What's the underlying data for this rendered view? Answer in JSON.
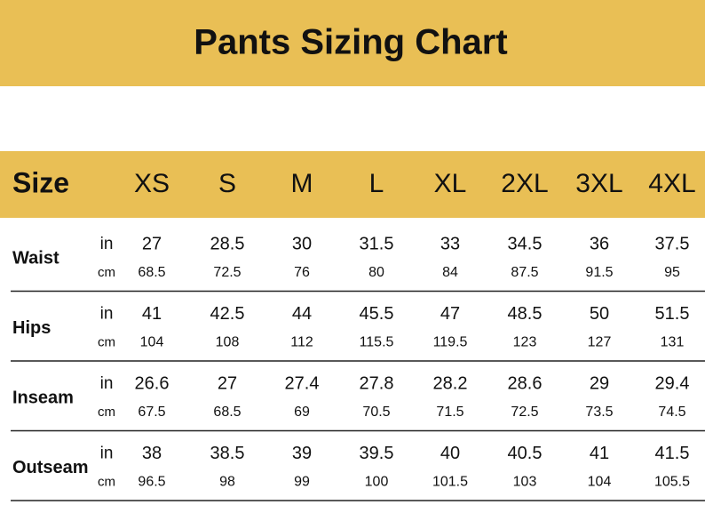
{
  "title": "Pants Sizing Chart",
  "table": {
    "header": [
      "Size",
      "XS",
      "S",
      "M",
      "L",
      "XL",
      "2XL",
      "3XL",
      "4XL"
    ],
    "rows": [
      {
        "label": "Waist",
        "units": [
          {
            "unit": "in",
            "values": [
              27,
              28.5,
              30,
              31.5,
              33,
              34.5,
              36,
              37.5
            ]
          },
          {
            "unit": "cm",
            "values": [
              68.5,
              72.5,
              76,
              80,
              84,
              87.5,
              91.5,
              95
            ]
          }
        ]
      },
      {
        "label": "Hips",
        "units": [
          {
            "unit": "in",
            "values": [
              41,
              42.5,
              44,
              45.5,
              47,
              48.5,
              50,
              51.5
            ]
          },
          {
            "unit": "cm",
            "values": [
              104,
              108,
              112,
              115.5,
              119.5,
              123,
              127,
              131
            ]
          }
        ]
      },
      {
        "label": "Inseam",
        "units": [
          {
            "unit": "in",
            "values": [
              26.6,
              27,
              27.4,
              27.8,
              28.2,
              28.6,
              29,
              29.4
            ]
          },
          {
            "unit": "cm",
            "values": [
              67.5,
              68.5,
              69,
              70.5,
              71.5,
              72.5,
              73.5,
              74.5
            ]
          }
        ]
      },
      {
        "label": "Outseam",
        "units": [
          {
            "unit": "in",
            "values": [
              38,
              38.5,
              39,
              39.5,
              40,
              40.5,
              41,
              41.5
            ]
          },
          {
            "unit": "cm",
            "values": [
              96.5,
              98,
              99,
              100,
              101.5,
              103,
              104,
              105.5
            ]
          }
        ]
      }
    ]
  }
}
